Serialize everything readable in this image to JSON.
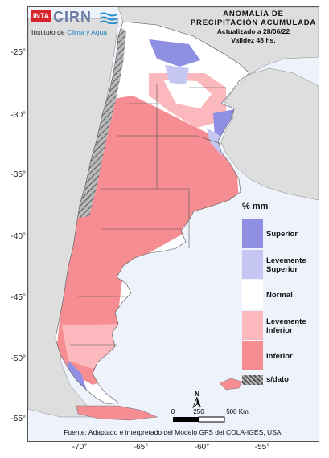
{
  "logo": {
    "brand_inta": "INTA",
    "brand_cirn": "CIRN",
    "subtitle_plain": "Instituto de ",
    "subtitle_highlight": "Clima y Agua"
  },
  "title": {
    "line1": "ANOMALÍA DE",
    "line2": "PRECIPITACIÓN ACUMULADA",
    "line3": "Actualizado a 28/06/22",
    "line4": "Validez 48 hs."
  },
  "legend": {
    "unit": "% mm",
    "items": [
      {
        "label1": "Superior",
        "label2": "",
        "color": "#8f8fe3"
      },
      {
        "label1": "Levemente",
        "label2": "Superior",
        "color": "#c6c6f2"
      },
      {
        "label1": "Normal",
        "label2": "",
        "color": "#ffffff"
      },
      {
        "label1": "Levemente",
        "label2": "Inferior",
        "color": "#fbb9bd"
      },
      {
        "label1": "Inferior",
        "label2": "",
        "color": "#f58d92"
      },
      {
        "label1": "s/dato",
        "label2": "",
        "color": "#8c8c8c"
      }
    ]
  },
  "scale": {
    "t0": "0",
    "t1": "250",
    "t2": "500 Km"
  },
  "north_label": "N",
  "source": "Fuente: Adaptado e interpretado del Modelo GFS del COLA-IGES, USA.",
  "axes": {
    "lat": [
      "-25°",
      "-30°",
      "-35°",
      "-40°",
      "-45°",
      "-50°",
      "-55°"
    ],
    "lon": [
      "-70°",
      "-65°",
      "-60°",
      "-55°"
    ]
  }
}
